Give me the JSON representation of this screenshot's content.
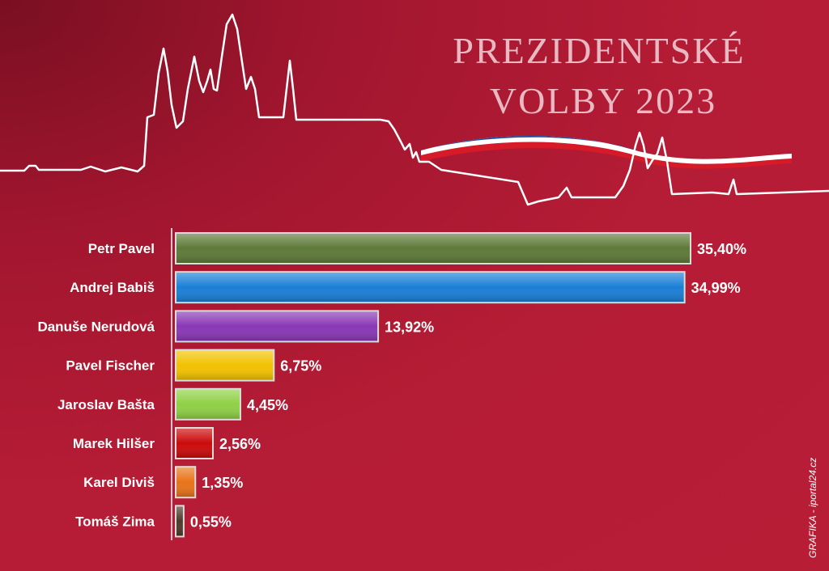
{
  "header": {
    "title_line1": "PREZIDENTSKÉ",
    "title_line2": "VOLBY 2023"
  },
  "credit": "GRAFIKA - iportal24.cz",
  "chart_data": {
    "type": "bar",
    "orientation": "horizontal",
    "categories": [
      "Petr Pavel",
      "Andrej Babiš",
      "Danuše Nerudová",
      "Pavel Fischer",
      "Jaroslav Bašta",
      "Marek Hilšer",
      "Karel Diviš",
      "Tomáš Zima"
    ],
    "values": [
      35.4,
      34.99,
      13.92,
      6.75,
      4.45,
      2.56,
      1.35,
      0.55
    ],
    "value_labels": [
      "35,40%",
      "34,99%",
      "13,92%",
      "6,75%",
      "4,45%",
      "2,56%",
      "1,35%",
      "0,55%"
    ],
    "colors": [
      "#5e7a38",
      "#1a7fd6",
      "#8a37b5",
      "#f2c200",
      "#8fd045",
      "#cc0a0a",
      "#e8731a",
      "#4d3a2a"
    ],
    "xlim": [
      0,
      35.4
    ],
    "grid": false,
    "legend": "none"
  }
}
